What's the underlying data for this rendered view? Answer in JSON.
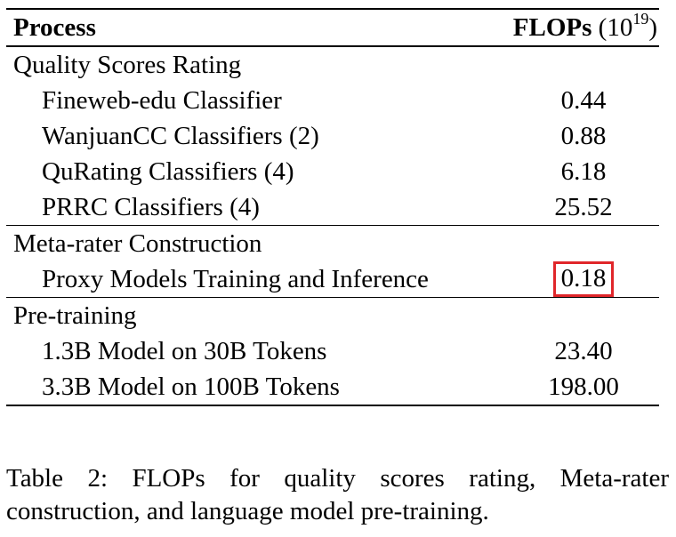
{
  "table": {
    "header": {
      "process": "Process",
      "flops_label": "FLOPs",
      "flops_unit_open": "(10",
      "flops_unit_exp": "19",
      "flops_unit_close": ")"
    },
    "sections": [
      {
        "title": "Quality Scores Rating",
        "rows": [
          {
            "label": "Fineweb-edu Classifier",
            "value": "0.44"
          },
          {
            "label": "WanjuanCC Classifiers (2)",
            "value": "0.88"
          },
          {
            "label": "QuRating Classifiers (4)",
            "value": "6.18"
          },
          {
            "label": "PRRC Classifiers (4)",
            "value": "25.52"
          }
        ]
      },
      {
        "title": "Meta-rater Construction",
        "rows": [
          {
            "label": "Proxy Models Training and Inference",
            "value": "0.18",
            "highlighted": true
          }
        ]
      },
      {
        "title": "Pre-training",
        "rows": [
          {
            "label": "1.3B Model on 30B Tokens",
            "value": "23.40"
          },
          {
            "label": "3.3B Model on 100B Tokens",
            "value": "198.00"
          }
        ]
      }
    ],
    "highlight_color": "#e0262a"
  },
  "caption": "Table 2: FLOPs for quality scores rating, Meta-rater construction, and language model pre-training."
}
